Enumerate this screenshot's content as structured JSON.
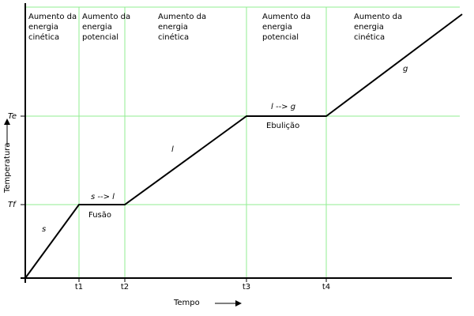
{
  "regions": [
    {
      "lines": [
        "Aumento da",
        "energia",
        "cinética"
      ]
    },
    {
      "lines": [
        "Aumento da",
        "energia",
        "potencial"
      ]
    },
    {
      "lines": [
        "Aumento da",
        "energia",
        "cinética"
      ]
    },
    {
      "lines": [
        "Aumento da",
        "energia",
        "potencial"
      ]
    },
    {
      "lines": [
        "Aumento da",
        "energia",
        "cinética"
      ]
    }
  ],
  "x_axis": {
    "label": "Tempo",
    "ticks": [
      "t1",
      "t2",
      "t3",
      "t4"
    ]
  },
  "y_axis": {
    "label": "Temperatura",
    "ticks": [
      "Tf",
      "Te"
    ]
  },
  "segments": [
    "s",
    "s --> l",
    "Fusão",
    "l",
    "l --> g",
    "Ebulição",
    "g"
  ]
}
